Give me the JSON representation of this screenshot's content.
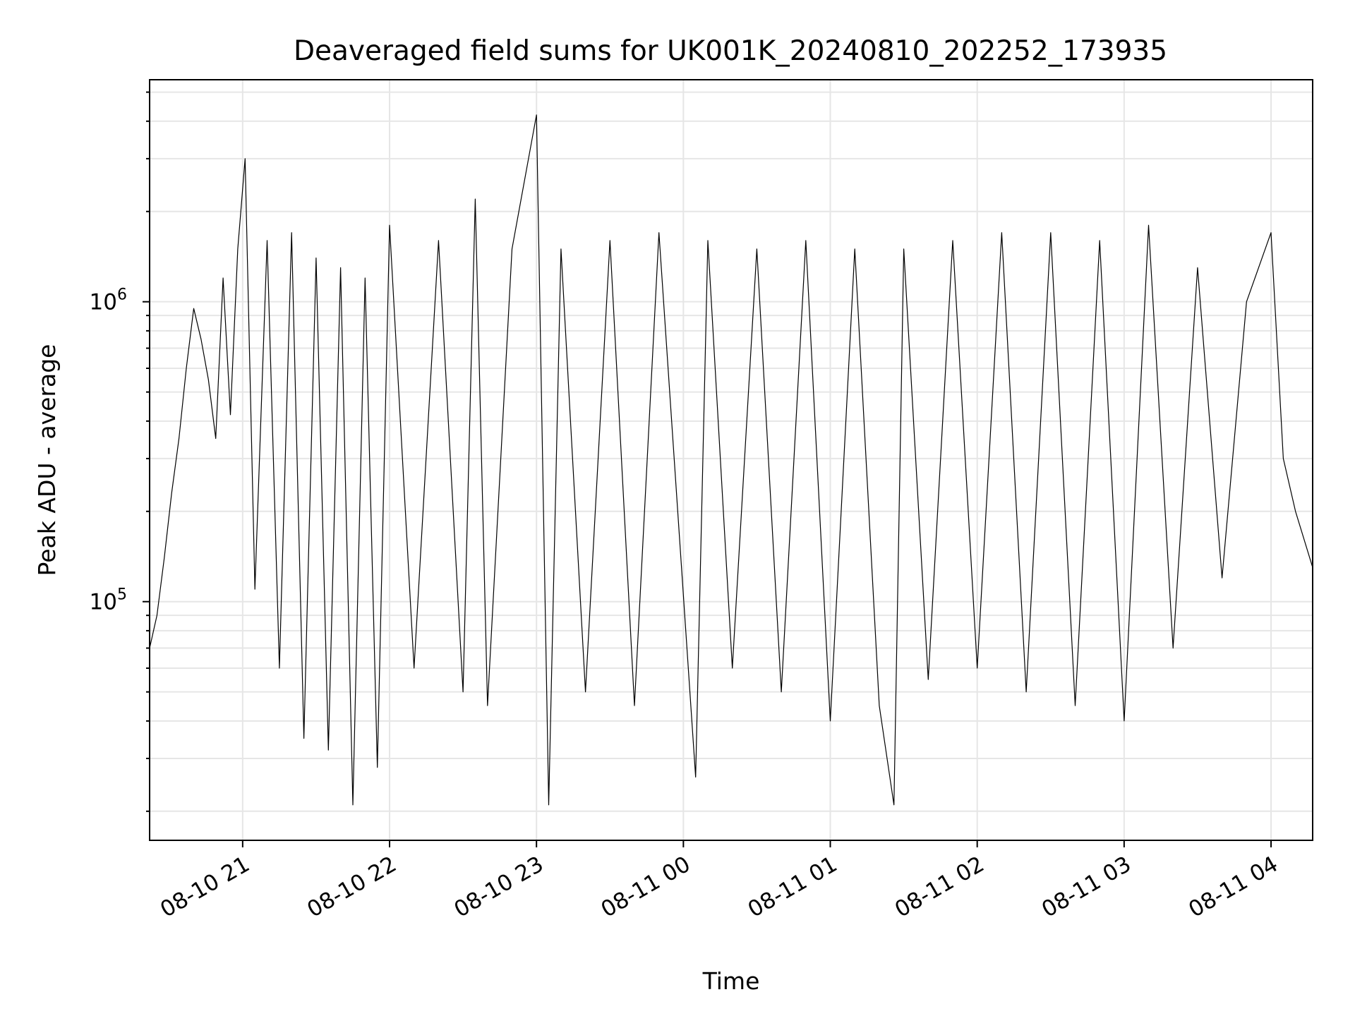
{
  "chart_data": {
    "type": "line",
    "title": "Deaveraged field sums for UK001K_20240810_202252_173935",
    "xlabel": "Time",
    "ylabel": "Peak ADU - average",
    "yscale": "log",
    "grid": true,
    "line_color": "#000000",
    "grid_color": "#e6e6e6",
    "xlim": [
      "2024-08-10 20:22",
      "2024-08-11 04:17"
    ],
    "ylim": [
      16000,
      5500000
    ],
    "x_ticks": [
      {
        "t": "2024-08-10 21:00",
        "label": "08-10 21"
      },
      {
        "t": "2024-08-10 22:00",
        "label": "08-10 22"
      },
      {
        "t": "2024-08-10 23:00",
        "label": "08-10 23"
      },
      {
        "t": "2024-08-11 00:00",
        "label": "08-11 00"
      },
      {
        "t": "2024-08-11 01:00",
        "label": "08-11 01"
      },
      {
        "t": "2024-08-11 02:00",
        "label": "08-11 02"
      },
      {
        "t": "2024-08-11 03:00",
        "label": "08-11 03"
      },
      {
        "t": "2024-08-11 04:00",
        "label": "08-11 04"
      }
    ],
    "y_ticks": [
      {
        "value": 100000,
        "base": "10",
        "exp": "5"
      },
      {
        "value": 1000000,
        "base": "10",
        "exp": "6"
      }
    ],
    "series": [
      {
        "name": "",
        "points": [
          [
            "2024-08-10 20:22",
            70000
          ],
          [
            "2024-08-10 20:25",
            90000
          ],
          [
            "2024-08-10 20:28",
            140000
          ],
          [
            "2024-08-10 20:31",
            230000
          ],
          [
            "2024-08-10 20:34",
            350000
          ],
          [
            "2024-08-10 20:37",
            600000
          ],
          [
            "2024-08-10 20:40",
            950000
          ],
          [
            "2024-08-10 20:43",
            750000
          ],
          [
            "2024-08-10 20:46",
            550000
          ],
          [
            "2024-08-10 20:49",
            350000
          ],
          [
            "2024-08-10 20:52",
            1200000
          ],
          [
            "2024-08-10 20:55",
            420000
          ],
          [
            "2024-08-10 20:58",
            1500000
          ],
          [
            "2024-08-10 21:01",
            3000000
          ],
          [
            "2024-08-10 21:05",
            110000
          ],
          [
            "2024-08-10 21:10",
            1600000
          ],
          [
            "2024-08-10 21:15",
            60000
          ],
          [
            "2024-08-10 21:20",
            1700000
          ],
          [
            "2024-08-10 21:25",
            35000
          ],
          [
            "2024-08-10 21:30",
            1400000
          ],
          [
            "2024-08-10 21:35",
            32000
          ],
          [
            "2024-08-10 21:40",
            1300000
          ],
          [
            "2024-08-10 21:45",
            21000
          ],
          [
            "2024-08-10 21:50",
            1200000
          ],
          [
            "2024-08-10 21:55",
            28000
          ],
          [
            "2024-08-10 22:00",
            1800000
          ],
          [
            "2024-08-10 22:10",
            60000
          ],
          [
            "2024-08-10 22:20",
            1600000
          ],
          [
            "2024-08-10 22:30",
            50000
          ],
          [
            "2024-08-10 22:35",
            2200000
          ],
          [
            "2024-08-10 22:40",
            45000
          ],
          [
            "2024-08-10 22:50",
            1500000
          ],
          [
            "2024-08-10 23:00",
            4200000
          ],
          [
            "2024-08-10 23:05",
            21000
          ],
          [
            "2024-08-10 23:10",
            1500000
          ],
          [
            "2024-08-10 23:20",
            50000
          ],
          [
            "2024-08-10 23:30",
            1600000
          ],
          [
            "2024-08-10 23:40",
            45000
          ],
          [
            "2024-08-10 23:50",
            1700000
          ],
          [
            "2024-08-11 00:05",
            26000
          ],
          [
            "2024-08-11 00:10",
            1600000
          ],
          [
            "2024-08-11 00:20",
            60000
          ],
          [
            "2024-08-11 00:30",
            1500000
          ],
          [
            "2024-08-11 00:40",
            50000
          ],
          [
            "2024-08-11 00:50",
            1600000
          ],
          [
            "2024-08-11 01:00",
            40000
          ],
          [
            "2024-08-11 01:10",
            1500000
          ],
          [
            "2024-08-11 01:20",
            45000
          ],
          [
            "2024-08-11 01:26",
            21000
          ],
          [
            "2024-08-11 01:30",
            1500000
          ],
          [
            "2024-08-11 01:40",
            55000
          ],
          [
            "2024-08-11 01:50",
            1600000
          ],
          [
            "2024-08-11 02:00",
            60000
          ],
          [
            "2024-08-11 02:10",
            1700000
          ],
          [
            "2024-08-11 02:20",
            50000
          ],
          [
            "2024-08-11 02:30",
            1700000
          ],
          [
            "2024-08-11 02:40",
            45000
          ],
          [
            "2024-08-11 02:50",
            1600000
          ],
          [
            "2024-08-11 03:00",
            40000
          ],
          [
            "2024-08-11 03:10",
            1800000
          ],
          [
            "2024-08-11 03:20",
            70000
          ],
          [
            "2024-08-11 03:30",
            1300000
          ],
          [
            "2024-08-11 03:40",
            120000
          ],
          [
            "2024-08-11 03:50",
            1000000
          ],
          [
            "2024-08-11 04:00",
            1700000
          ],
          [
            "2024-08-11 04:05",
            300000
          ],
          [
            "2024-08-11 04:10",
            200000
          ],
          [
            "2024-08-11 04:17",
            130000
          ]
        ]
      }
    ]
  }
}
